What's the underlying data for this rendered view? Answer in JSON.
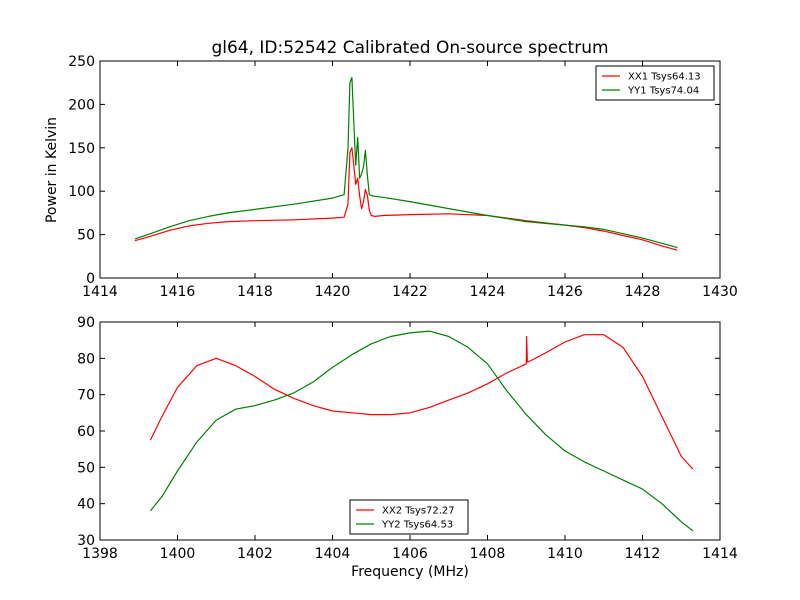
{
  "chart_data": [
    {
      "type": "line",
      "title": "gl64, ID:52542 Calibrated On-source spectrum",
      "xlabel": "",
      "ylabel": "Power in Kelvin",
      "xlim": [
        1414,
        1430
      ],
      "ylim": [
        0,
        250
      ],
      "xticks": [
        1414,
        1416,
        1418,
        1420,
        1422,
        1424,
        1426,
        1428,
        1430
      ],
      "yticks": [
        0,
        50,
        100,
        150,
        200,
        250
      ],
      "legend_position": "top-right",
      "series": [
        {
          "name": "XX1 Tsys64.13",
          "color": "#ff0000",
          "x": [
            1414.9,
            1415.3,
            1415.8,
            1416.3,
            1416.8,
            1417.3,
            1418,
            1419,
            1420,
            1420.3,
            1420.4,
            1420.45,
            1420.5,
            1420.55,
            1420.6,
            1420.65,
            1420.7,
            1420.75,
            1420.8,
            1420.85,
            1420.9,
            1420.95,
            1421.0,
            1421.1,
            1421.3,
            1422,
            1423,
            1424,
            1425,
            1426,
            1426.5,
            1427,
            1427.5,
            1428,
            1428.5,
            1428.9
          ],
          "y": [
            43,
            48,
            55,
            60,
            63,
            65,
            66,
            67,
            69,
            70,
            85,
            145,
            150,
            130,
            108,
            115,
            95,
            80,
            88,
            102,
            95,
            78,
            72,
            71,
            72,
            73,
            74,
            72,
            66,
            61,
            58,
            54,
            49,
            44,
            37,
            32
          ]
        },
        {
          "name": "YY1 Tsys74.04",
          "color": "#008000",
          "x": [
            1414.9,
            1415.3,
            1415.8,
            1416.3,
            1416.8,
            1417.3,
            1418,
            1419,
            1420,
            1420.3,
            1420.4,
            1420.45,
            1420.5,
            1420.55,
            1420.6,
            1420.65,
            1420.7,
            1420.75,
            1420.8,
            1420.85,
            1420.9,
            1420.95,
            1421.0,
            1421.1,
            1421.3,
            1422,
            1423,
            1424,
            1425,
            1426,
            1426.5,
            1427,
            1427.5,
            1428,
            1428.5,
            1428.9
          ],
          "y": [
            45,
            51,
            59,
            66,
            71,
            75,
            79,
            85,
            92,
            96,
            150,
            225,
            231,
            180,
            130,
            162,
            115,
            120,
            128,
            147,
            118,
            96,
            95,
            94,
            93,
            88,
            80,
            72,
            65,
            61,
            59,
            56,
            51,
            46,
            40,
            35
          ]
        }
      ]
    },
    {
      "type": "line",
      "title": "",
      "xlabel": "Frequency (MHz)",
      "ylabel": "",
      "xlim": [
        1398,
        1414
      ],
      "ylim": [
        30,
        90
      ],
      "xticks": [
        1398,
        1400,
        1402,
        1404,
        1406,
        1408,
        1410,
        1412,
        1414
      ],
      "yticks": [
        30,
        40,
        50,
        60,
        70,
        80,
        90
      ],
      "legend_position": "bottom-center",
      "series": [
        {
          "name": "XX2 Tsys72.27",
          "color": "#ff0000",
          "x": [
            1399.3,
            1399.6,
            1400,
            1400.5,
            1401,
            1401.5,
            1402,
            1402.5,
            1403,
            1403.5,
            1404,
            1404.5,
            1405,
            1405.5,
            1406,
            1406.5,
            1407,
            1407.5,
            1408,
            1408.5,
            1409,
            1409.01,
            1409.03,
            1409.05,
            1409.5,
            1410,
            1410.5,
            1411,
            1411.5,
            1412,
            1412.5,
            1413,
            1413.3
          ],
          "y": [
            57.5,
            64,
            72,
            78,
            80,
            78,
            75,
            71.5,
            69,
            67,
            65.5,
            65,
            64.5,
            64.5,
            65,
            66.5,
            68.5,
            70.5,
            73,
            76,
            78.5,
            86,
            79,
            79,
            81.5,
            84.5,
            86.5,
            86.5,
            83,
            75,
            64,
            53,
            49.5
          ]
        },
        {
          "name": "YY2 Tsys64.53",
          "color": "#008000",
          "x": [
            1399.3,
            1399.6,
            1400,
            1400.5,
            1401,
            1401.5,
            1402,
            1402.5,
            1403,
            1403.5,
            1404,
            1404.5,
            1405,
            1405.5,
            1406,
            1406.5,
            1407,
            1407.5,
            1408,
            1408.5,
            1409,
            1409.5,
            1410,
            1410.5,
            1411,
            1411.5,
            1412,
            1412.5,
            1413,
            1413.3
          ],
          "y": [
            38,
            42,
            49,
            57,
            63,
            66,
            67,
            68.5,
            70.5,
            73.5,
            77.5,
            81,
            84,
            86,
            87,
            87.5,
            86,
            83,
            78.5,
            71,
            64.5,
            59,
            54.5,
            51.5,
            49,
            46.5,
            44,
            40,
            35,
            32.5
          ]
        }
      ]
    }
  ]
}
